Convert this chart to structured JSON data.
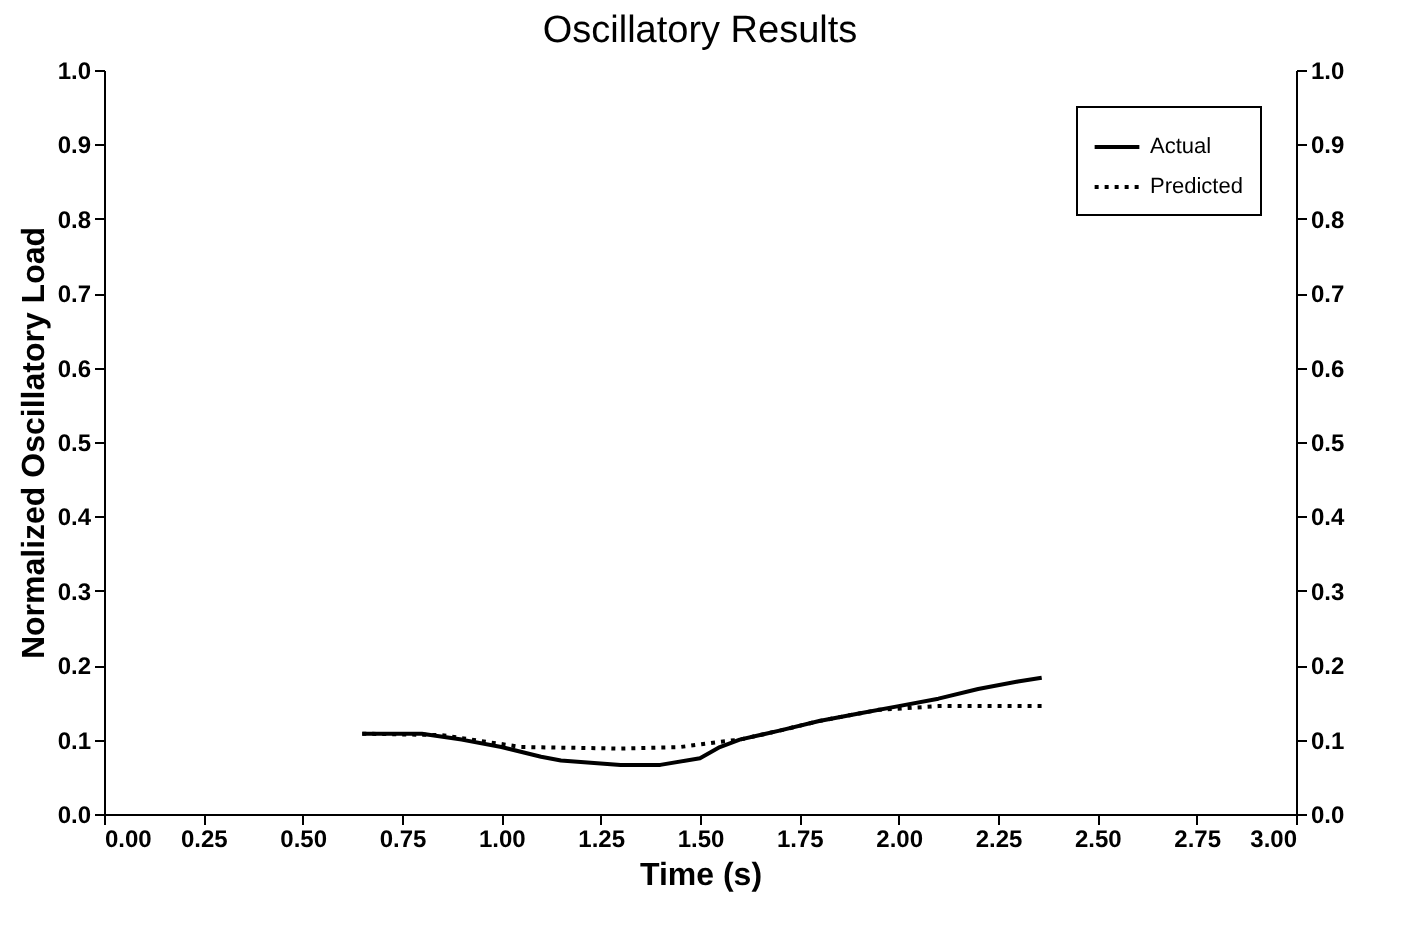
{
  "chart_data": {
    "type": "line",
    "title": "Oscillatory Results",
    "xlabel": "Time (s)",
    "ylabel": "Normalized Oscillatory Load",
    "xlim": [
      0,
      3
    ],
    "xticks": [
      {
        "value": 0,
        "label": "0.00"
      },
      {
        "value": 0.25,
        "label": "0.25"
      },
      {
        "value": 0.5,
        "label": "0.50"
      },
      {
        "value": 0.75,
        "label": "0.75"
      },
      {
        "value": 1,
        "label": "1.00"
      },
      {
        "value": 1.25,
        "label": "1.25"
      },
      {
        "value": 1.5,
        "label": "1.50"
      },
      {
        "value": 1.75,
        "label": "1.75"
      },
      {
        "value": 2,
        "label": "2.00"
      },
      {
        "value": 2.25,
        "label": "2.25"
      },
      {
        "value": 2.5,
        "label": "2.50"
      },
      {
        "value": 2.75,
        "label": "2.75"
      },
      {
        "value": 3,
        "label": "3.00"
      }
    ],
    "ylim": [
      0,
      1
    ],
    "yticks": [
      {
        "value": 0,
        "label": "0.0"
      },
      {
        "value": 0.1,
        "label": "0.1"
      },
      {
        "value": 0.2,
        "label": "0.2"
      },
      {
        "value": 0.3,
        "label": "0.3"
      },
      {
        "value": 0.4,
        "label": "0.4"
      },
      {
        "value": 0.5,
        "label": "0.5"
      },
      {
        "value": 0.6,
        "label": "0.6"
      },
      {
        "value": 0.7,
        "label": "0.7"
      },
      {
        "value": 0.8,
        "label": "0.8"
      },
      {
        "value": 0.9,
        "label": "0.9"
      },
      {
        "value": 1,
        "label": "1.0"
      }
    ],
    "y2lim": [
      0,
      1
    ],
    "y2ticks": [
      {
        "value": 0,
        "label": "0.0"
      },
      {
        "value": 0.1,
        "label": "0.1"
      },
      {
        "value": 0.2,
        "label": "0.2"
      },
      {
        "value": 0.3,
        "label": "0.3"
      },
      {
        "value": 0.4,
        "label": "0.4"
      },
      {
        "value": 0.5,
        "label": "0.5"
      },
      {
        "value": 0.6,
        "label": "0.6"
      },
      {
        "value": 0.7,
        "label": "0.7"
      },
      {
        "value": 0.8,
        "label": "0.8"
      },
      {
        "value": 0.9,
        "label": "0.9"
      },
      {
        "value": 1,
        "label": "1.0"
      }
    ],
    "legend": "top right",
    "grid": false,
    "series": [
      {
        "name": "Actual",
        "color": "#000000",
        "line_style": "solid",
        "x": [
          0.65,
          0.8,
          0.9,
          1.0,
          1.1,
          1.15,
          1.2,
          1.3,
          1.4,
          1.5,
          1.55,
          1.6,
          1.7,
          1.8,
          1.9,
          2.0,
          2.1,
          2.2,
          2.3,
          2.36
        ],
        "values": [
          0.108,
          0.108,
          0.1,
          0.09,
          0.077,
          0.072,
          0.07,
          0.066,
          0.066,
          0.075,
          0.09,
          0.1,
          0.112,
          0.125,
          0.135,
          0.145,
          0.155,
          0.168,
          0.178,
          0.183
        ]
      },
      {
        "name": "Predicted",
        "color": "#000000",
        "line_style": "dotted",
        "x": [
          0.65,
          0.85,
          1.0,
          1.05,
          1.3,
          1.45,
          1.55,
          1.6,
          1.7,
          1.8,
          1.9,
          1.95,
          2.1,
          2.36
        ],
        "values": [
          0.108,
          0.106,
          0.094,
          0.09,
          0.088,
          0.09,
          0.097,
          0.1,
          0.112,
          0.125,
          0.135,
          0.14,
          0.145,
          0.145
        ]
      }
    ]
  }
}
